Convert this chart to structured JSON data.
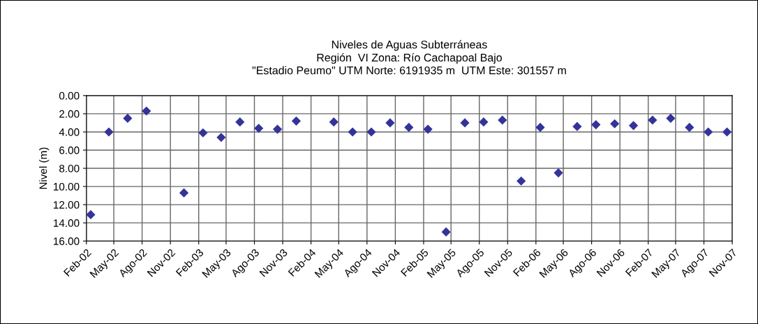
{
  "chart_data": {
    "type": "scatter",
    "title": "Niveles de Aguas Subterráneas\nRegión  VI Zona: Río Cachapoal Bajo\n\"Estadio Peumo\" UTM Norte: 6191935 m  UTM Este: 301557 m",
    "ylabel": "Nivel (m)",
    "x": [
      "2002-02-15",
      "2002-04-15",
      "2002-06-15",
      "2002-08-15",
      "2002-12-15",
      "2003-02-15",
      "2003-04-15",
      "2003-06-15",
      "2003-08-15",
      "2003-10-15",
      "2003-12-15",
      "2004-04-15",
      "2004-06-15",
      "2004-08-15",
      "2004-10-15",
      "2004-12-15",
      "2005-02-15",
      "2005-04-15",
      "2005-06-15",
      "2005-08-15",
      "2005-10-15",
      "2005-12-15",
      "2006-02-15",
      "2006-04-15",
      "2006-06-15",
      "2006-08-15",
      "2006-10-15",
      "2006-12-15",
      "2007-02-15",
      "2007-04-15",
      "2007-06-15",
      "2007-08-15",
      "2007-10-15"
    ],
    "series": [
      {
        "color": "#333399",
        "values": [
          13.1,
          4.0,
          2.5,
          1.7,
          10.7,
          4.1,
          4.6,
          2.9,
          3.6,
          3.7,
          2.8,
          2.9,
          4.0,
          4.0,
          3.0,
          3.5,
          3.7,
          15.0,
          3.0,
          2.9,
          2.7,
          9.4,
          3.5,
          8.5,
          3.4,
          3.2,
          3.1,
          3.3,
          2.7,
          2.5,
          3.5,
          4.0,
          4.0
        ]
      }
    ],
    "marker": "diamond",
    "ylim": [
      16,
      0
    ],
    "yticks": [
      {
        "value": 0,
        "label": "0.00"
      },
      {
        "value": 2,
        "label": "2.00"
      },
      {
        "value": 4,
        "label": "4.00"
      },
      {
        "value": 6,
        "label": "6.00"
      },
      {
        "value": 8,
        "label": "8.00"
      },
      {
        "value": 10,
        "label": "10.00"
      },
      {
        "value": 12,
        "label": "12.00"
      },
      {
        "value": 14,
        "label": "14.00"
      },
      {
        "value": 16,
        "label": "16.00"
      }
    ],
    "xlim": [
      "2002-02-01",
      "2007-11-01"
    ],
    "xticks": [
      {
        "value": "2002-02-01",
        "label": "Feb-02"
      },
      {
        "value": "2002-05-01",
        "label": "May-02"
      },
      {
        "value": "2002-08-01",
        "label": "Ago-02"
      },
      {
        "value": "2002-11-01",
        "label": "Nov-02"
      },
      {
        "value": "2003-02-01",
        "label": "Feb-03"
      },
      {
        "value": "2003-05-01",
        "label": "May-03"
      },
      {
        "value": "2003-08-01",
        "label": "Ago-03"
      },
      {
        "value": "2003-11-01",
        "label": "Nov-03"
      },
      {
        "value": "2004-02-01",
        "label": "Feb-04"
      },
      {
        "value": "2004-05-01",
        "label": "May-04"
      },
      {
        "value": "2004-08-01",
        "label": "Ago-04"
      },
      {
        "value": "2004-11-01",
        "label": "Nov-04"
      },
      {
        "value": "2005-02-01",
        "label": "Feb-05"
      },
      {
        "value": "2005-05-01",
        "label": "May-05"
      },
      {
        "value": "2005-08-01",
        "label": "Ago-05"
      },
      {
        "value": "2005-11-01",
        "label": "Nov-05"
      },
      {
        "value": "2006-02-01",
        "label": "Feb-06"
      },
      {
        "value": "2006-05-01",
        "label": "May-06"
      },
      {
        "value": "2006-08-01",
        "label": "Ago-06"
      },
      {
        "value": "2006-11-01",
        "label": "Nov-06"
      },
      {
        "value": "2007-02-01",
        "label": "Feb-07"
      },
      {
        "value": "2007-05-01",
        "label": "May-07"
      },
      {
        "value": "2007-08-01",
        "label": "Ago-07"
      },
      {
        "value": "2007-11-01",
        "label": "Nov-07"
      }
    ],
    "grid": true
  }
}
